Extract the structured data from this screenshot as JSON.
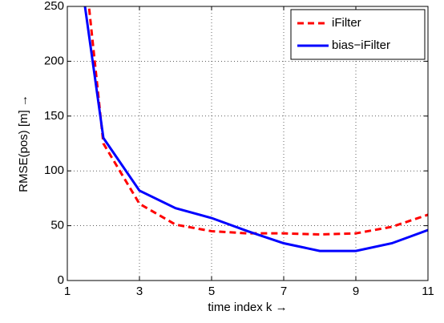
{
  "chart_data": {
    "type": "line",
    "xlabel": "time index k →",
    "ylabel": "RMSE(pos) [m] →",
    "x": [
      1,
      2,
      3,
      4,
      5,
      6,
      7,
      8,
      9,
      10,
      11
    ],
    "series": [
      {
        "name": "iFilter",
        "color": "#ff0000",
        "line_style": "dashed",
        "values": [
          437,
          125,
          70,
          51,
          45,
          43,
          43,
          42,
          43,
          49,
          60
        ]
      },
      {
        "name": "bias−iFilter",
        "color": "#0000ff",
        "line_style": "solid",
        "values": [
          365,
          130,
          82,
          66,
          57,
          45,
          34,
          27,
          27,
          34,
          46
        ]
      }
    ],
    "xlim": [
      1,
      11
    ],
    "xticks": [
      1,
      3,
      5,
      7,
      9,
      11
    ],
    "ylim": [
      0,
      250
    ],
    "yticks": [
      0,
      50,
      100,
      150,
      200,
      250
    ],
    "grid": true,
    "legend": "upper right"
  }
}
